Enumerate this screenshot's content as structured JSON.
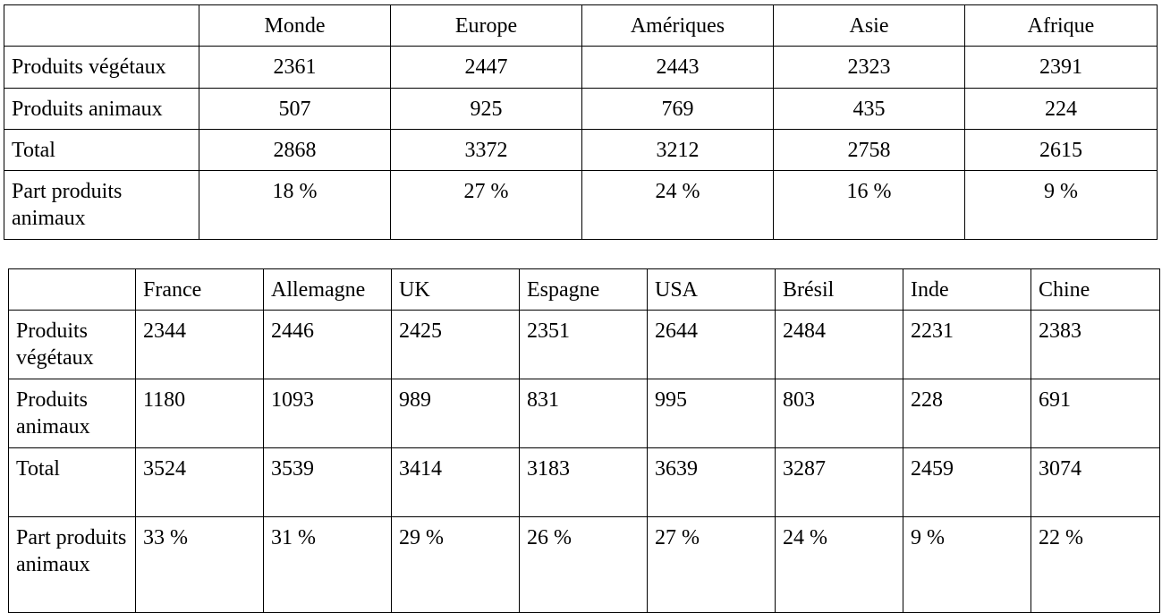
{
  "table1": {
    "columns": [
      "",
      "Monde",
      "Europe",
      "Amériques",
      "Asie",
      "Afrique"
    ],
    "rows": [
      {
        "label": "Produits végétaux",
        "values": [
          "2361",
          "2447",
          "2443",
          "2323",
          "2391"
        ]
      },
      {
        "label": "Produits animaux",
        "values": [
          "507",
          "925",
          "769",
          "435",
          "224"
        ]
      },
      {
        "label": "Total",
        "values": [
          "2868",
          "3372",
          "3212",
          "2758",
          "2615"
        ]
      },
      {
        "label": "Part produits animaux",
        "values": [
          "18 %",
          "27 %",
          "24 %",
          "16 %",
          "9 %"
        ]
      }
    ]
  },
  "table2": {
    "columns": [
      "",
      "France",
      "Allemagne",
      "UK",
      "Espagne",
      "USA",
      "Brésil",
      "Inde",
      "Chine"
    ],
    "rows": [
      {
        "label": "Produits végétaux",
        "values": [
          "2344",
          "2446",
          "2425",
          "2351",
          "2644",
          "2484",
          "2231",
          "2383"
        ]
      },
      {
        "label": "Produits animaux",
        "values": [
          "1180",
          "1093",
          "989",
          "831",
          "995",
          "803",
          "228",
          "691"
        ]
      },
      {
        "label": "Total",
        "values": [
          "3524",
          "3539",
          "3414",
          "3183",
          "3639",
          "3287",
          "2459",
          "3074"
        ]
      },
      {
        "label": "Part produits animaux",
        "values": [
          "33 %",
          "31 %",
          "29 %",
          "26 %",
          "27 %",
          "24 %",
          "9 %",
          "22 %"
        ]
      }
    ]
  }
}
